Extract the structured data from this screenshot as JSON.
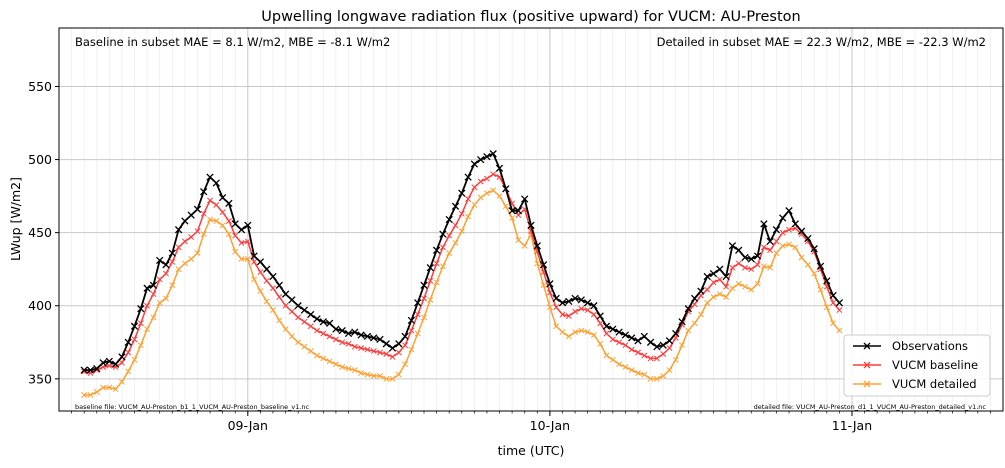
{
  "chart_data": {
    "type": "line",
    "title": "Upwelling longwave radiation flux (positive upward) for VUCM: AU-Preston",
    "xlabel": "time (UTC)",
    "ylabel": "LWup [W/m2]",
    "ylim": [
      328,
      590
    ],
    "yticks": [
      350,
      400,
      450,
      500,
      550
    ],
    "x_axis": {
      "start": "2003-01-08 09:00",
      "end": "2003-01-11 12:00",
      "major_ticks": [
        {
          "time": "2003-01-09 00:00",
          "label": "09-Jan"
        },
        {
          "time": "2003-01-10 00:00",
          "label": "10-Jan"
        },
        {
          "time": "2003-01-11 00:00",
          "label": "11-Jan"
        }
      ],
      "minor_tick_interval": "1H",
      "data_interval": "30min",
      "data_start": "2003-01-08 11:00"
    },
    "grid": true,
    "legend_position": "lower-right",
    "annotations": {
      "top_left": "Baseline in subset MAE = 8.1 W/m2, MBE = -8.1 W/m2",
      "top_right": "Detailed in subset MAE = 22.3 W/m2, MBE = -22.3 W/m2",
      "bottom_left": "baseline file: VUCM_AU-Preston_b1_1_VUCM_AU-Preston_baseline_v1.nc",
      "bottom_right": "detailed file: VUCM_AU-Preston_d1_1_VUCM_AU-Preston_detailed_v1.nc"
    },
    "series": [
      {
        "name": "Observations",
        "color": "#000000",
        "values": [
          356,
          356,
          357,
          361,
          362,
          360,
          365,
          375,
          386,
          398,
          412,
          414,
          431,
          428,
          436,
          452,
          458,
          462,
          466,
          478,
          488,
          484,
          474,
          470,
          456,
          452,
          455,
          434,
          430,
          425,
          420,
          414,
          408,
          404,
          400,
          397,
          394,
          391,
          389,
          388,
          384,
          383,
          381,
          382,
          380,
          379,
          378,
          377,
          374,
          371,
          374,
          379,
          390,
          402,
          414,
          426,
          438,
          449,
          459,
          468,
          477,
          488,
          497,
          500,
          502,
          504,
          494,
          480,
          465,
          465,
          473,
          455,
          441,
          428,
          415,
          405,
          402,
          403,
          405,
          404,
          402,
          400,
          393,
          386,
          384,
          382,
          380,
          378,
          376,
          379,
          375,
          372,
          373,
          376,
          381,
          389,
          398,
          405,
          410,
          420,
          422,
          425,
          420,
          441,
          438,
          433,
          432,
          434,
          456,
          444,
          452,
          460,
          465,
          456,
          451,
          446,
          439,
          427,
          417,
          407,
          402
        ]
      },
      {
        "name": "VUCM baseline",
        "color": "#ff3c3c",
        "values": [
          355,
          354,
          356,
          358,
          359,
          358,
          361,
          368,
          377,
          388,
          400,
          408,
          418,
          422,
          430,
          440,
          444,
          447,
          451,
          463,
          472,
          469,
          464,
          458,
          448,
          443,
          444,
          430,
          423,
          417,
          412,
          406,
          400,
          396,
          392,
          389,
          386,
          383,
          381,
          379,
          377,
          375,
          374,
          372,
          371,
          370,
          369,
          368,
          367,
          365,
          368,
          373,
          383,
          394,
          405,
          417,
          429,
          440,
          448,
          455,
          463,
          473,
          481,
          485,
          487,
          490,
          488,
          480,
          470,
          462,
          466,
          451,
          437,
          423,
          409,
          399,
          394,
          393,
          396,
          398,
          397,
          394,
          388,
          381,
          377,
          375,
          373,
          370,
          368,
          366,
          364,
          364,
          367,
          371,
          378,
          387,
          396,
          401,
          407,
          411,
          416,
          418,
          413,
          426,
          429,
          426,
          425,
          428,
          440,
          438,
          444,
          450,
          452,
          453,
          449,
          444,
          437,
          425,
          413,
          402,
          397
        ]
      },
      {
        "name": "VUCM detailed",
        "color": "#ffa030",
        "values": [
          339,
          339,
          341,
          344,
          344,
          343,
          348,
          355,
          363,
          373,
          384,
          392,
          402,
          405,
          414,
          425,
          429,
          432,
          436,
          449,
          459,
          458,
          455,
          449,
          437,
          432,
          432,
          418,
          410,
          403,
          397,
          390,
          384,
          379,
          375,
          372,
          369,
          366,
          364,
          362,
          360,
          358,
          357,
          356,
          354,
          353,
          352,
          352,
          350,
          350,
          353,
          360,
          370,
          381,
          392,
          404,
          416,
          427,
          436,
          443,
          451,
          461,
          469,
          474,
          477,
          479,
          475,
          468,
          460,
          445,
          441,
          449,
          429,
          414,
          399,
          386,
          382,
          379,
          382,
          383,
          382,
          380,
          374,
          366,
          363,
          360,
          358,
          356,
          354,
          353,
          350,
          350,
          352,
          356,
          363,
          373,
          383,
          388,
          394,
          402,
          406,
          408,
          406,
          412,
          415,
          413,
          411,
          415,
          427,
          426,
          436,
          441,
          442,
          440,
          433,
          428,
          422,
          411,
          399,
          388,
          383
        ]
      }
    ]
  }
}
